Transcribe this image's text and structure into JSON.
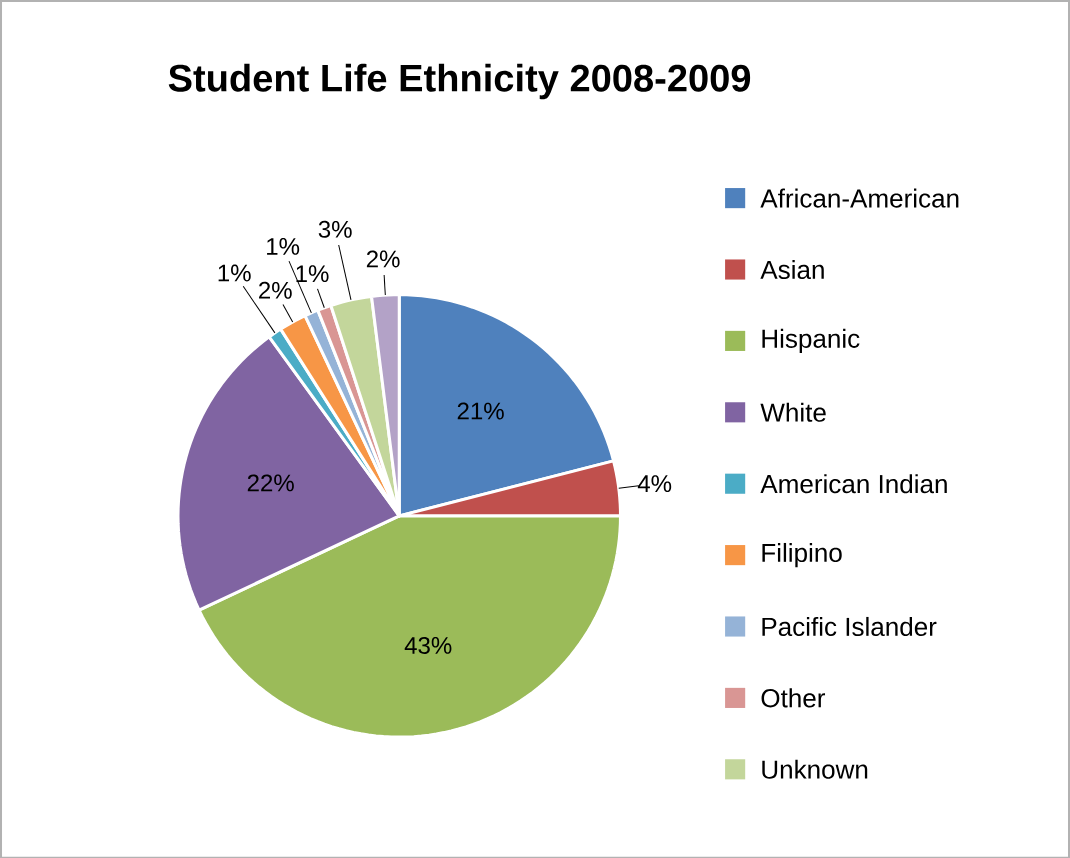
{
  "chart_data": {
    "type": "pie",
    "title": "Student Life Ethnicity 2008-2009",
    "categories": [
      "African-American",
      "Asian",
      "Hispanic",
      "White",
      "American Indian",
      "Filipino",
      "Pacific Islander",
      "Other",
      "Unknown",
      null
    ],
    "values": [
      21,
      4,
      43,
      22,
      1,
      2,
      1,
      1,
      3,
      2
    ],
    "colors": [
      "#4f81bd",
      "#c0504d",
      "#9bbb59",
      "#8064a2",
      "#4bacc6",
      "#f79646",
      "#95b3d7",
      "#d99694",
      "#c3d69b",
      "#b3a2c7"
    ],
    "value_labels": [
      "21%",
      "4%",
      "43%",
      "22%",
      "1%",
      "2%",
      "1%",
      "1%",
      "3%",
      "2%"
    ],
    "legend": "right"
  }
}
